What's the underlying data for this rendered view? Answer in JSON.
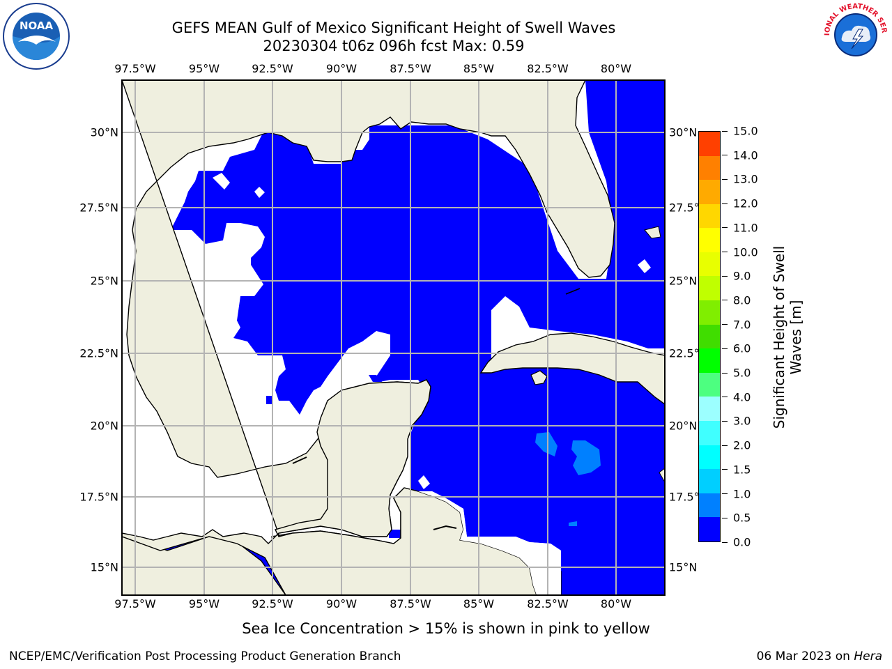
{
  "title_line1": "GEFS MEAN Gulf of Mexico Significant Height of Swell Waves",
  "title_line2": "20230304 t06z 096h fcst   Max: 0.59",
  "longitudes": [
    "97.5°W",
    "95°W",
    "92.5°W",
    "90°W",
    "87.5°W",
    "85°W",
    "82.5°W",
    "80°W"
  ],
  "latitudes": [
    "30°N",
    "27.5°N",
    "25°N",
    "22.5°N",
    "20°N",
    "17.5°N",
    "15°N"
  ],
  "right_latitudes": [
    "30°N",
    "27.5°N",
    "25°N",
    "22.5°N",
    "20°N",
    "17.5°N",
    "15°N"
  ],
  "colorbar": {
    "label": "Significant Height of Swell Waves [m]",
    "ticks": [
      "0.0",
      "0.5",
      "1.0",
      "1.5",
      "2.0",
      "3.0",
      "4.0",
      "5.0",
      "6.0",
      "7.0",
      "8.0",
      "9.0",
      "10.0",
      "11.0",
      "12.0",
      "13.0",
      "14.0",
      "15.0"
    ],
    "colors": [
      "#0000ff",
      "#0080ff",
      "#00cfff",
      "#00ffff",
      "#40ffff",
      "#9cffff",
      "#4dff80",
      "#00ff00",
      "#40dd00",
      "#80ee00",
      "#c0ff00",
      "#e8ff00",
      "#ffff00",
      "#ffd700",
      "#ffaa00",
      "#ff8000",
      "#ff4000",
      "#ff0000"
    ]
  },
  "colors": {
    "land": "#efefdf",
    "ocean_low": "#0000ff",
    "ocean_mid": "#0080ff",
    "nodata": "#ffffff",
    "grid": "#b3b3b3"
  },
  "note": "Sea Ice Concentration > 15% is shown in pink to yellow",
  "footer_left": "NCEP/EMC/Verification Post Processing Product Generation Branch",
  "footer_date": "06 Mar 2023",
  "footer_on": " on ",
  "footer_machine": "Hera",
  "logos": {
    "left": "NOAA",
    "right": "NATIONAL WEATHER SERVICE"
  }
}
